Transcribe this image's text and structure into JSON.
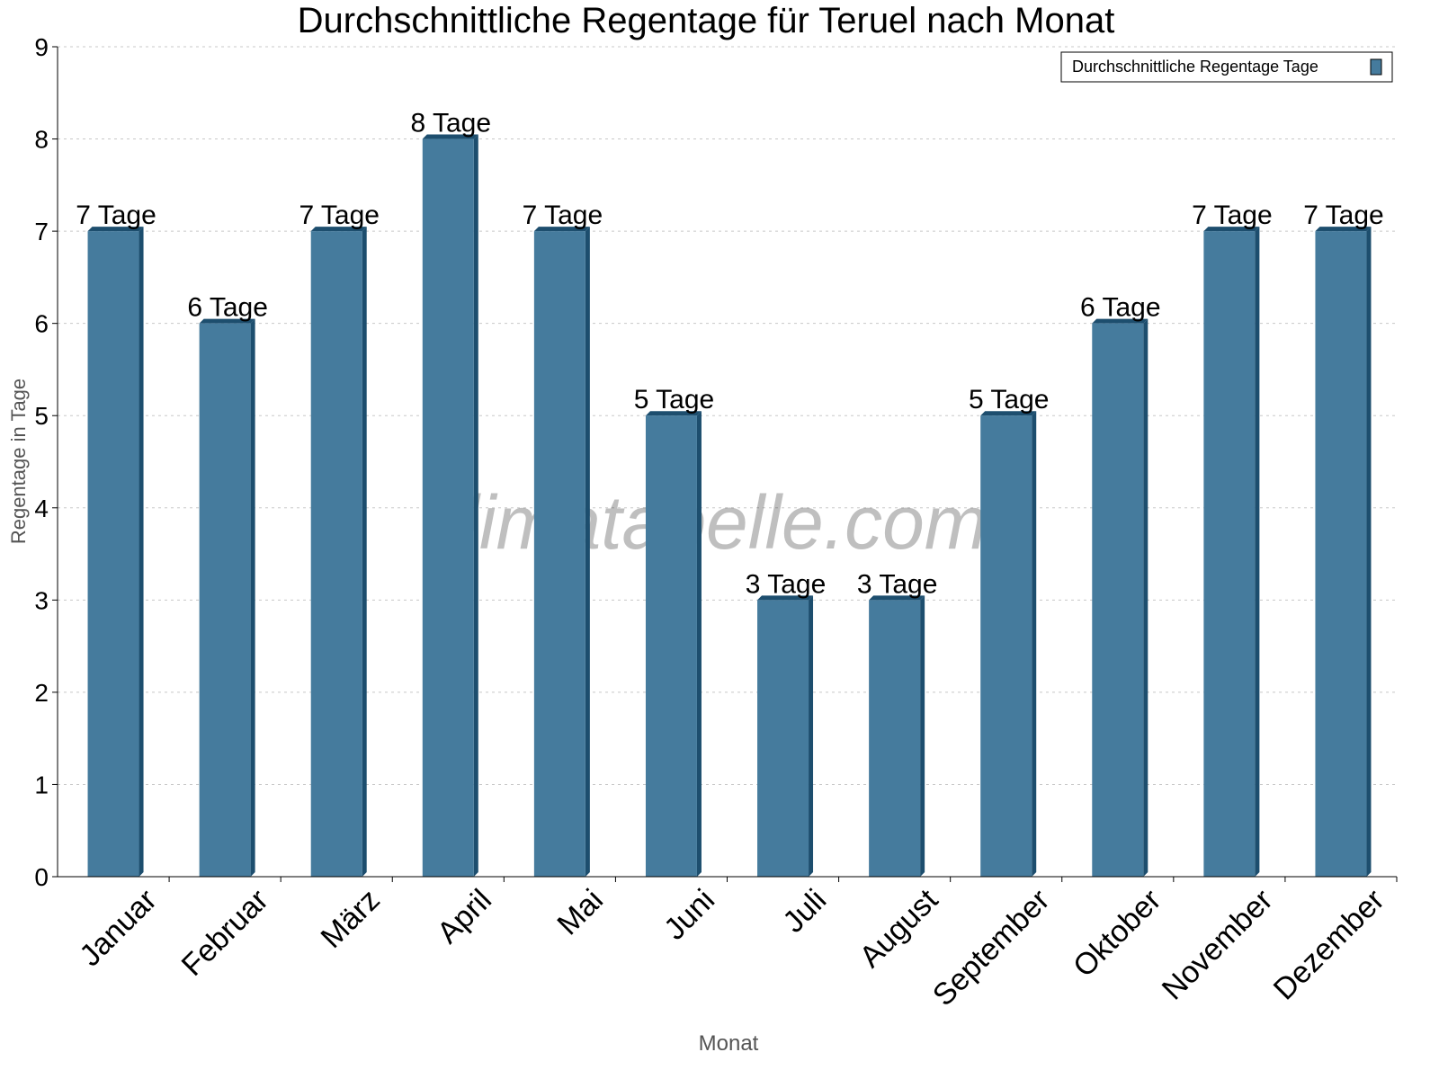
{
  "chart_data": {
    "type": "bar",
    "title": "Durchschnittliche Regentage für Teruel nach Monat",
    "xlabel": "Monat",
    "ylabel": "Regentage in Tage",
    "categories": [
      "Januar",
      "Februar",
      "März",
      "April",
      "Mai",
      "Juni",
      "Juli",
      "August",
      "September",
      "Oktober",
      "November",
      "Dezember"
    ],
    "series": [
      {
        "name": "Durchschnittliche Regentage Tage",
        "values": [
          7,
          6,
          7,
          8,
          7,
          5,
          3,
          3,
          5,
          6,
          7,
          7
        ]
      }
    ],
    "data_labels": [
      "7 Tage",
      "6 Tage",
      "7 Tage",
      "8 Tage",
      "7 Tage",
      "5 Tage",
      "3 Tage",
      "3 Tage",
      "5 Tage",
      "6 Tage",
      "7 Tage",
      "7 Tage"
    ],
    "ylim": [
      0,
      9
    ],
    "yticks": [
      0,
      1,
      2,
      3,
      4,
      5,
      6,
      7,
      8,
      9
    ],
    "grid": true,
    "legend": "top-right",
    "colors": {
      "bar": "#457b9d",
      "bar_side": "#1d4e6e",
      "grid": "#c8c8c8"
    },
    "watermark": "klimatabelle.com"
  }
}
